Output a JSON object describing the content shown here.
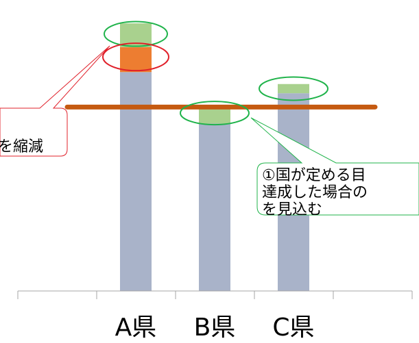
{
  "chart_data": {
    "type": "bar",
    "stacked": true,
    "categories": [
      "A県",
      "B県",
      "C県"
    ],
    "series": [
      {
        "color": "#A9B3C9",
        "values": [
          238,
          182,
          215
        ]
      },
      {
        "color": "#ED7D31",
        "values": [
          27,
          0,
          0
        ]
      },
      {
        "color": "#A9D18E",
        "values": [
          26,
          20,
          10
        ]
      }
    ],
    "reference_line": {
      "value": 200,
      "color": "#C55A11"
    },
    "highlight_colors": {
      "red": "#E0202A",
      "green": "#1FB34A"
    },
    "axis_color": "#A6A6A6",
    "ylim": [
      0,
      300
    ],
    "grid": false,
    "legend": "none"
  },
  "callouts": {
    "left": {
      "text": "を縮減",
      "border_color": "#E0202A"
    },
    "right": {
      "lines": [
        "①国が定める目",
        "達成した場合の",
        "を見込む"
      ],
      "border_color": "#1FB34A"
    }
  }
}
